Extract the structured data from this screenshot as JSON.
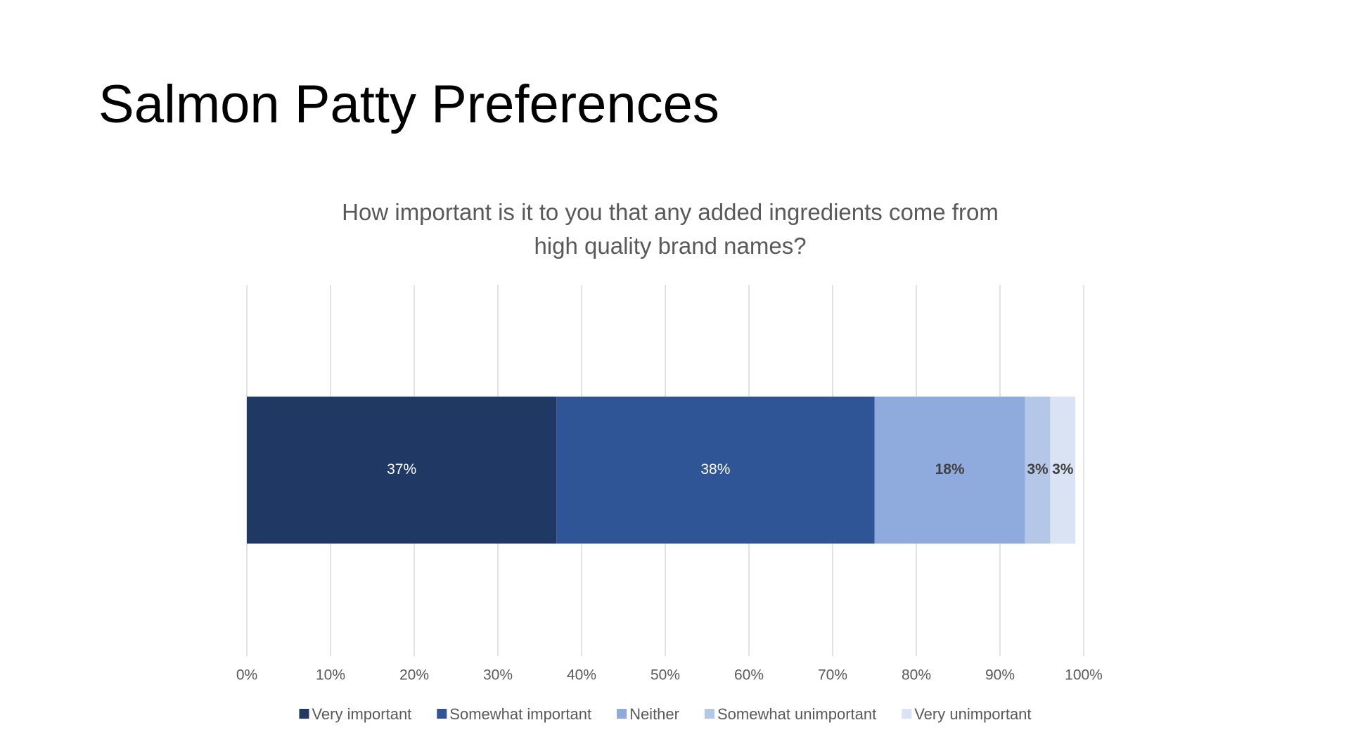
{
  "slide_title": "Salmon Patty Preferences",
  "chart_data": {
    "type": "bar",
    "orientation": "horizontal",
    "stacked": true,
    "title": "How important is it to you that any added ingredients come from high quality brand names?",
    "categories": [
      null
    ],
    "series": [
      {
        "name": "Very important",
        "color": "#203864",
        "values": [
          37
        ],
        "value_labels": [
          "37%"
        ]
      },
      {
        "name": "Somewhat important",
        "color": "#2f5597",
        "values": [
          38
        ],
        "value_labels": [
          "38%"
        ]
      },
      {
        "name": "Neither",
        "color": "#8faadc",
        "values": [
          18
        ],
        "value_labels": [
          "18%"
        ]
      },
      {
        "name": "Somewhat unimportant",
        "color": "#b4c7e7",
        "values": [
          3
        ],
        "value_labels": [
          "3%"
        ]
      },
      {
        "name": "Very unimportant",
        "color": "#dae3f3",
        "values": [
          3
        ],
        "value_labels": [
          "3%"
        ]
      }
    ],
    "xlim": [
      0,
      100
    ],
    "xticks": [
      {
        "value": 0,
        "label": "0%"
      },
      {
        "value": 10,
        "label": "10%"
      },
      {
        "value": 20,
        "label": "20%"
      },
      {
        "value": 30,
        "label": "30%"
      },
      {
        "value": 40,
        "label": "40%"
      },
      {
        "value": 50,
        "label": "50%"
      },
      {
        "value": 60,
        "label": "60%"
      },
      {
        "value": 70,
        "label": "70%"
      },
      {
        "value": 80,
        "label": "80%"
      },
      {
        "value": 90,
        "label": "90%"
      },
      {
        "value": 100,
        "label": "100%"
      }
    ],
    "grid": true,
    "legend": "bottom"
  }
}
